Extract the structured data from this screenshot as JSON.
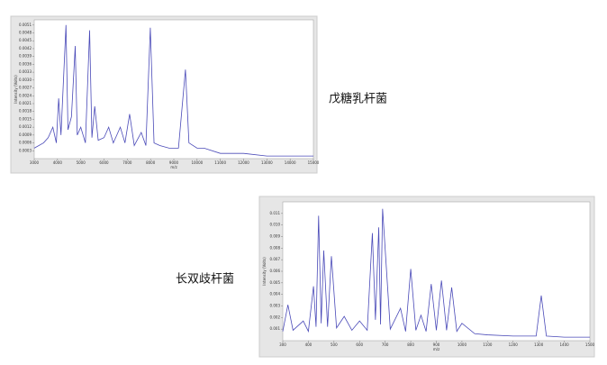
{
  "chart_data": [
    {
      "type": "line",
      "caption": "戊糖乳杆菌",
      "xlabel": "m/z",
      "ylabel": "Intensity (Volts)",
      "x": [
        3000,
        3400,
        3600,
        3800,
        3950,
        4050,
        4150,
        4365,
        4450,
        4600,
        4762,
        4850,
        5000,
        5200,
        5381,
        5480,
        5600,
        5750,
        6000,
        6200,
        6400,
        6700,
        6900,
        7100,
        7300,
        7600,
        7800,
        7990,
        8150,
        8400,
        8800,
        9200,
        9500,
        9650,
        10000,
        10300,
        11000,
        12000,
        13000,
        14000,
        15000
      ],
      "series": [
        {
          "color": "#4a4ab8",
          "values": [
            0.0004,
            0.0006,
            0.0008,
            0.0012,
            0.0006,
            0.0023,
            0.0009,
            0.0051,
            0.0011,
            0.0016,
            0.0043,
            0.0009,
            0.0012,
            0.0006,
            0.0049,
            0.0008,
            0.002,
            0.0007,
            0.0008,
            0.0012,
            0.0006,
            0.0012,
            0.0006,
            0.0017,
            0.0005,
            0.001,
            0.0005,
            0.005,
            0.0006,
            0.0005,
            0.0004,
            0.0004,
            0.0034,
            0.0006,
            0.0004,
            0.0004,
            0.0002,
            0.0002,
            0.0001,
            0.0001,
            0.0001
          ]
        }
      ],
      "xlim": [
        3000,
        15000
      ],
      "ylim": [
        0,
        0.0053
      ],
      "xticks": [
        3000,
        4000,
        5000,
        6000,
        7000,
        8000,
        9000,
        10000,
        11000,
        12000,
        13000,
        14000,
        15000
      ],
      "yticks": [
        0.0003,
        0.0006,
        0.0009,
        0.0012,
        0.0015,
        0.0018,
        0.0021,
        0.0024,
        0.0027,
        {
          "value": 0.003,
          "label": "0.0030"
        },
        0.0033,
        0.0036,
        0.0039,
        0.0042,
        0.0045,
        0.0048,
        0.0051
      ]
    },
    {
      "type": "line",
      "caption": "长双歧杆菌",
      "xlabel": "m/z",
      "ylabel": "Intensity (Volts)",
      "x": [
        300,
        320,
        340,
        380,
        400,
        420,
        430,
        440,
        450,
        460,
        475,
        490,
        510,
        540,
        570,
        600,
        630,
        650,
        662,
        675,
        682,
        690,
        720,
        760,
        780,
        800,
        820,
        840,
        860,
        880,
        900,
        920,
        940,
        960,
        980,
        1000,
        1050,
        1100,
        1200,
        1290,
        1310,
        1330,
        1400,
        1500
      ],
      "series": [
        {
          "color": "#4a4ab8",
          "values": [
            0.0008,
            0.0031,
            0.0009,
            0.0017,
            0.0008,
            0.0047,
            0.0012,
            0.0108,
            0.0015,
            0.0078,
            0.0012,
            0.0073,
            0.0011,
            0.0021,
            0.0009,
            0.0017,
            0.0009,
            0.0093,
            0.0018,
            0.0098,
            0.0014,
            0.0114,
            0.001,
            0.0028,
            0.0008,
            0.0062,
            0.0009,
            0.0022,
            0.0008,
            0.0049,
            0.0009,
            0.0052,
            0.0009,
            0.0046,
            0.0008,
            0.0015,
            0.0006,
            0.0005,
            0.0004,
            0.0004,
            0.0039,
            0.0004,
            0.0003,
            0.0003
          ]
        }
      ],
      "xlim": [
        300,
        1500
      ],
      "ylim": [
        0,
        0.012
      ],
      "xticks": [
        300,
        400,
        500,
        600,
        700,
        800,
        900,
        1000,
        1100,
        1200,
        1300,
        1400,
        1500
      ],
      "yticks": [
        0.001,
        0.002,
        0.003,
        0.004,
        0.005,
        0.006,
        0.007,
        0.008,
        0.009,
        {
          "value": 0.01,
          "label": "0.010"
        },
        0.011
      ]
    }
  ]
}
